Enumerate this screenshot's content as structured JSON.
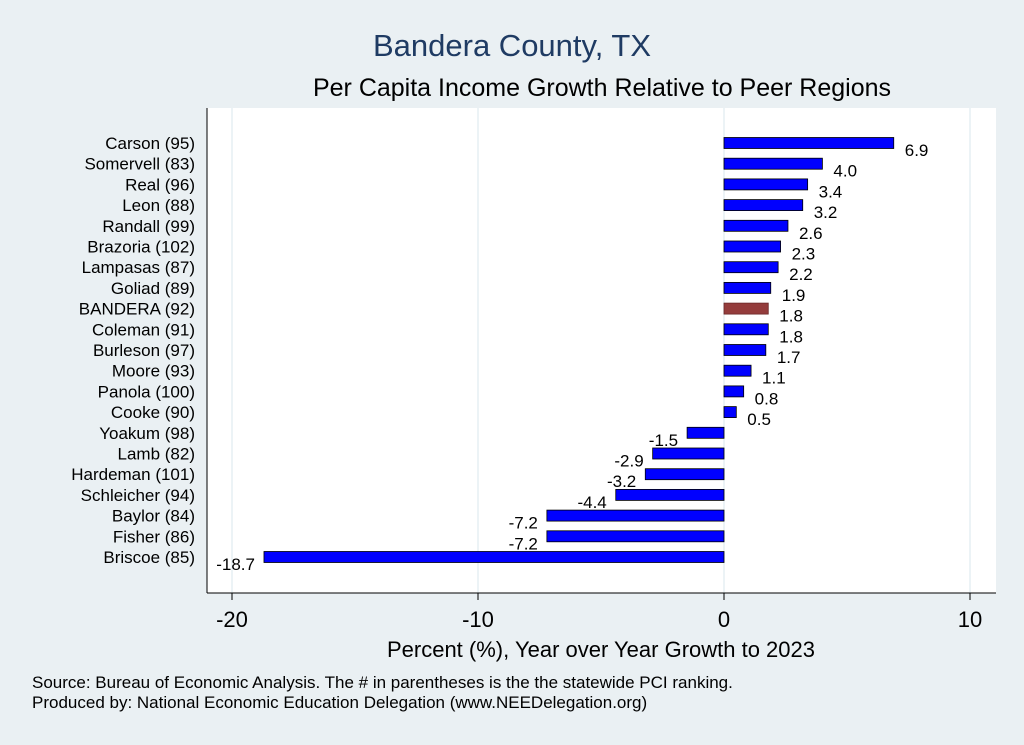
{
  "title": "Bandera County, TX",
  "subtitle": "Per Capita Income Growth Relative to Peer Regions",
  "footer": {
    "source": "Source: Bureau of Economic Analysis. The # in parentheses is the the statewide PCI ranking.",
    "produced": "Produced by: National Economic Education Delegation (www.NEEDelegation.org)"
  },
  "colors": {
    "bar": "#0000ff",
    "highlight": "#943c3c",
    "background": "#eaf0f3",
    "plot_background": "#ffffff",
    "grid": "#e6eff3",
    "title": "#1f3b63"
  },
  "chart_data": {
    "type": "bar",
    "orientation": "horizontal",
    "xlabel": "Percent (%), Year over Year Growth to 2023",
    "xlim": [
      -21,
      10
    ],
    "xticks": [
      -20,
      -10,
      0,
      10
    ],
    "grid": true,
    "highlight": "BANDERA (92)",
    "categories": [
      "Carson (95)",
      "Somervell (83)",
      "Real (96)",
      "Leon (88)",
      "Randall (99)",
      "Brazoria (102)",
      "Lampasas (87)",
      "Goliad (89)",
      "BANDERA (92)",
      "Coleman (91)",
      "Burleson (97)",
      "Moore (93)",
      "Panola (100)",
      "Cooke (90)",
      "Yoakum (98)",
      "Lamb (82)",
      "Hardeman (101)",
      "Schleicher (94)",
      "Baylor (84)",
      "Fisher (86)",
      "Briscoe (85)"
    ],
    "values": [
      6.9,
      4.0,
      3.4,
      3.2,
      2.6,
      2.3,
      2.2,
      1.9,
      1.8,
      1.8,
      1.7,
      1.1,
      0.8,
      0.5,
      -1.5,
      -2.9,
      -3.2,
      -4.4,
      -7.2,
      -7.2,
      -18.7
    ],
    "labels": [
      "6.9",
      "4.0",
      "3.4",
      "3.2",
      "2.6",
      "2.3",
      "2.2",
      "1.9",
      "1.8",
      "1.8",
      "1.7",
      "1.1",
      "0.8",
      "0.5",
      "-1.5",
      "-2.9",
      "-3.2",
      "-4.4",
      "-7.2",
      "-7.2",
      "-18.7"
    ]
  }
}
